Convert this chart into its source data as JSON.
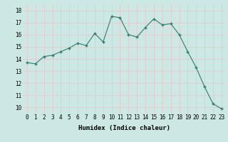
{
  "x": [
    0,
    1,
    2,
    3,
    4,
    5,
    6,
    7,
    8,
    9,
    10,
    11,
    12,
    13,
    14,
    15,
    16,
    17,
    18,
    19,
    20,
    21,
    22,
    23
  ],
  "y": [
    13.7,
    13.6,
    14.2,
    14.3,
    14.6,
    14.9,
    15.3,
    15.1,
    16.1,
    15.4,
    17.5,
    17.4,
    16.0,
    15.8,
    16.6,
    17.3,
    16.8,
    16.9,
    16.0,
    14.6,
    13.3,
    11.7,
    10.3,
    9.9
  ],
  "xlabel": "Humidex (Indice chaleur)",
  "ylim": [
    9.5,
    18.5
  ],
  "xlim": [
    -0.5,
    23.5
  ],
  "yticks": [
    10,
    11,
    12,
    13,
    14,
    15,
    16,
    17,
    18
  ],
  "xticks": [
    0,
    1,
    2,
    3,
    4,
    5,
    6,
    7,
    8,
    9,
    10,
    11,
    12,
    13,
    14,
    15,
    16,
    17,
    18,
    19,
    20,
    21,
    22,
    23
  ],
  "line_color": "#2e7d6e",
  "marker_color": "#2e7d6e",
  "bg_color": "#cce8e4",
  "grid_color": "#e8c8c8",
  "xlabel_fontsize": 6.5,
  "tick_fontsize": 5.5
}
